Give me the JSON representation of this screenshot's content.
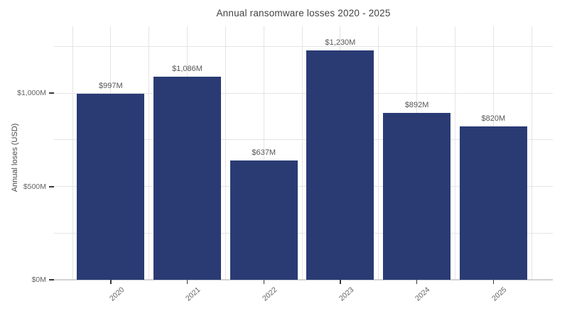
{
  "chart_data": {
    "type": "bar",
    "title": "Annual ransomware losses 2020 - 2025",
    "ylabel": "Annual loses (USD)",
    "xlabel": "",
    "categories": [
      "2020",
      "2021",
      "2022",
      "2023",
      "2024",
      "2025"
    ],
    "values": [
      997,
      1086,
      637,
      1230,
      892,
      820
    ],
    "value_labels": [
      "$997M",
      "$1,086M",
      "$637M",
      "$1,230M",
      "$892M",
      "$820M"
    ],
    "yticks": [
      {
        "value": 0,
        "label": "$0M"
      },
      {
        "value": 500,
        "label": "$500M"
      },
      {
        "value": 1000,
        "label": "$1,000M"
      }
    ],
    "ylim": [
      0,
      1358
    ],
    "grid_interval": 250,
    "grid_on": true,
    "legend_position": "none",
    "colors": {
      "bar": "#2a3b74",
      "grid": "#e4e4e4",
      "axis": "#d2d2d2",
      "tick_mark": "#3a3a3a",
      "value_label": "#565656",
      "tick_label": "#636363",
      "title": "#424242"
    }
  }
}
